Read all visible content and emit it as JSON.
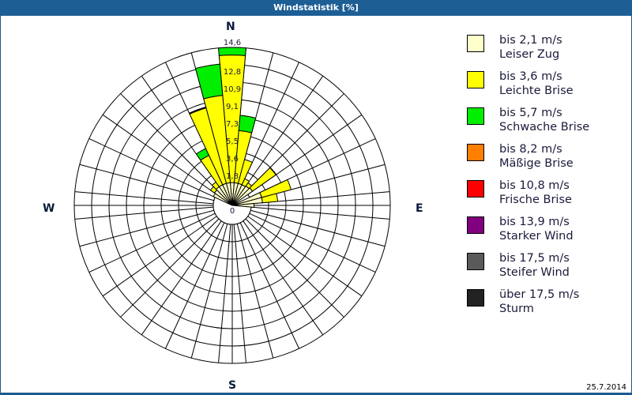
{
  "window": {
    "title": "Windstatistik [%]",
    "date": "25.7.2014"
  },
  "compass": {
    "n": "N",
    "e": "E",
    "s": "S",
    "w": "W"
  },
  "legend": [
    {
      "speed": "bis 2,1 m/s",
      "name": "Leiser Zug",
      "color": "#ffffcc"
    },
    {
      "speed": "bis 3,6 m/s",
      "name": "Leichte Brise",
      "color": "#ffff00"
    },
    {
      "speed": "bis 5,7 m/s",
      "name": "Schwache Brise",
      "color": "#00ee00"
    },
    {
      "speed": "bis 8,2 m/s",
      "name": "Mäßige Brise",
      "color": "#ff8000"
    },
    {
      "speed": "bis 10,8 m/s",
      "name": "Frische Brise",
      "color": "#ff0000"
    },
    {
      "speed": "bis 13,9 m/s",
      "name": "Starker Wind",
      "color": "#800080"
    },
    {
      "speed": "bis 17,5 m/s",
      "name": "Steifer Wind",
      "color": "#5a5a5a"
    },
    {
      "speed": "über 17,5 m/s",
      "name": "Sturm",
      "color": "#222222"
    }
  ],
  "chart_data": {
    "type": "wind-rose",
    "title": "Windstatistik [%]",
    "unit": "%",
    "radial_ticks": [
      "0",
      "1,8",
      "3,6",
      "5,5",
      "7,3",
      "9,1",
      "10,9",
      "12,8",
      "14,6"
    ],
    "radial_range": [
      0,
      14.6
    ],
    "sector_width_deg": 10,
    "grid": true,
    "legend_position": "right",
    "series": [
      "Leiser Zug",
      "Leichte Brise",
      "Schwache Brise",
      "Mäßige Brise",
      "Frische Brise",
      "Starker Wind",
      "Steifer Wind",
      "Sturm"
    ],
    "sectors": [
      {
        "dir_deg": 0,
        "cumulative": [
          0.4,
          13.8,
          14.6
        ]
      },
      {
        "dir_deg": 10,
        "cumulative": [
          0.4,
          5.9,
          7.5
        ]
      },
      {
        "dir_deg": 20,
        "cumulative": [
          0.4,
          3.0
        ]
      },
      {
        "dir_deg": 30,
        "cumulative": [
          0.4,
          1.1
        ]
      },
      {
        "dir_deg": 40,
        "cumulative": [
          0.5,
          0.9
        ]
      },
      {
        "dir_deg": 50,
        "cumulative": [
          0.6,
          3.6
        ]
      },
      {
        "dir_deg": 70,
        "cumulative": [
          1.2,
          4.4
        ]
      },
      {
        "dir_deg": 80,
        "cumulative": [
          1.2,
          2.8
        ]
      },
      {
        "dir_deg": 90,
        "cumulative": [
          0.3
        ]
      },
      {
        "dir_deg": 300,
        "cumulative": [
          0.2
        ]
      },
      {
        "dir_deg": 310,
        "cumulative": [
          0.3,
          0.8
        ]
      },
      {
        "dir_deg": 320,
        "cumulative": [
          0.4,
          1.0
        ]
      },
      {
        "dir_deg": 330,
        "cumulative": [
          0.4,
          3.8,
          4.6
        ]
      },
      {
        "dir_deg": 340,
        "cumulative": [
          0.4,
          8.6,
          8.6,
          8.6,
          8.6,
          8.6,
          8.6,
          8.7
        ]
      },
      {
        "dir_deg": 350,
        "cumulative": [
          0.4,
          9.6,
          12.9
        ]
      }
    ]
  }
}
